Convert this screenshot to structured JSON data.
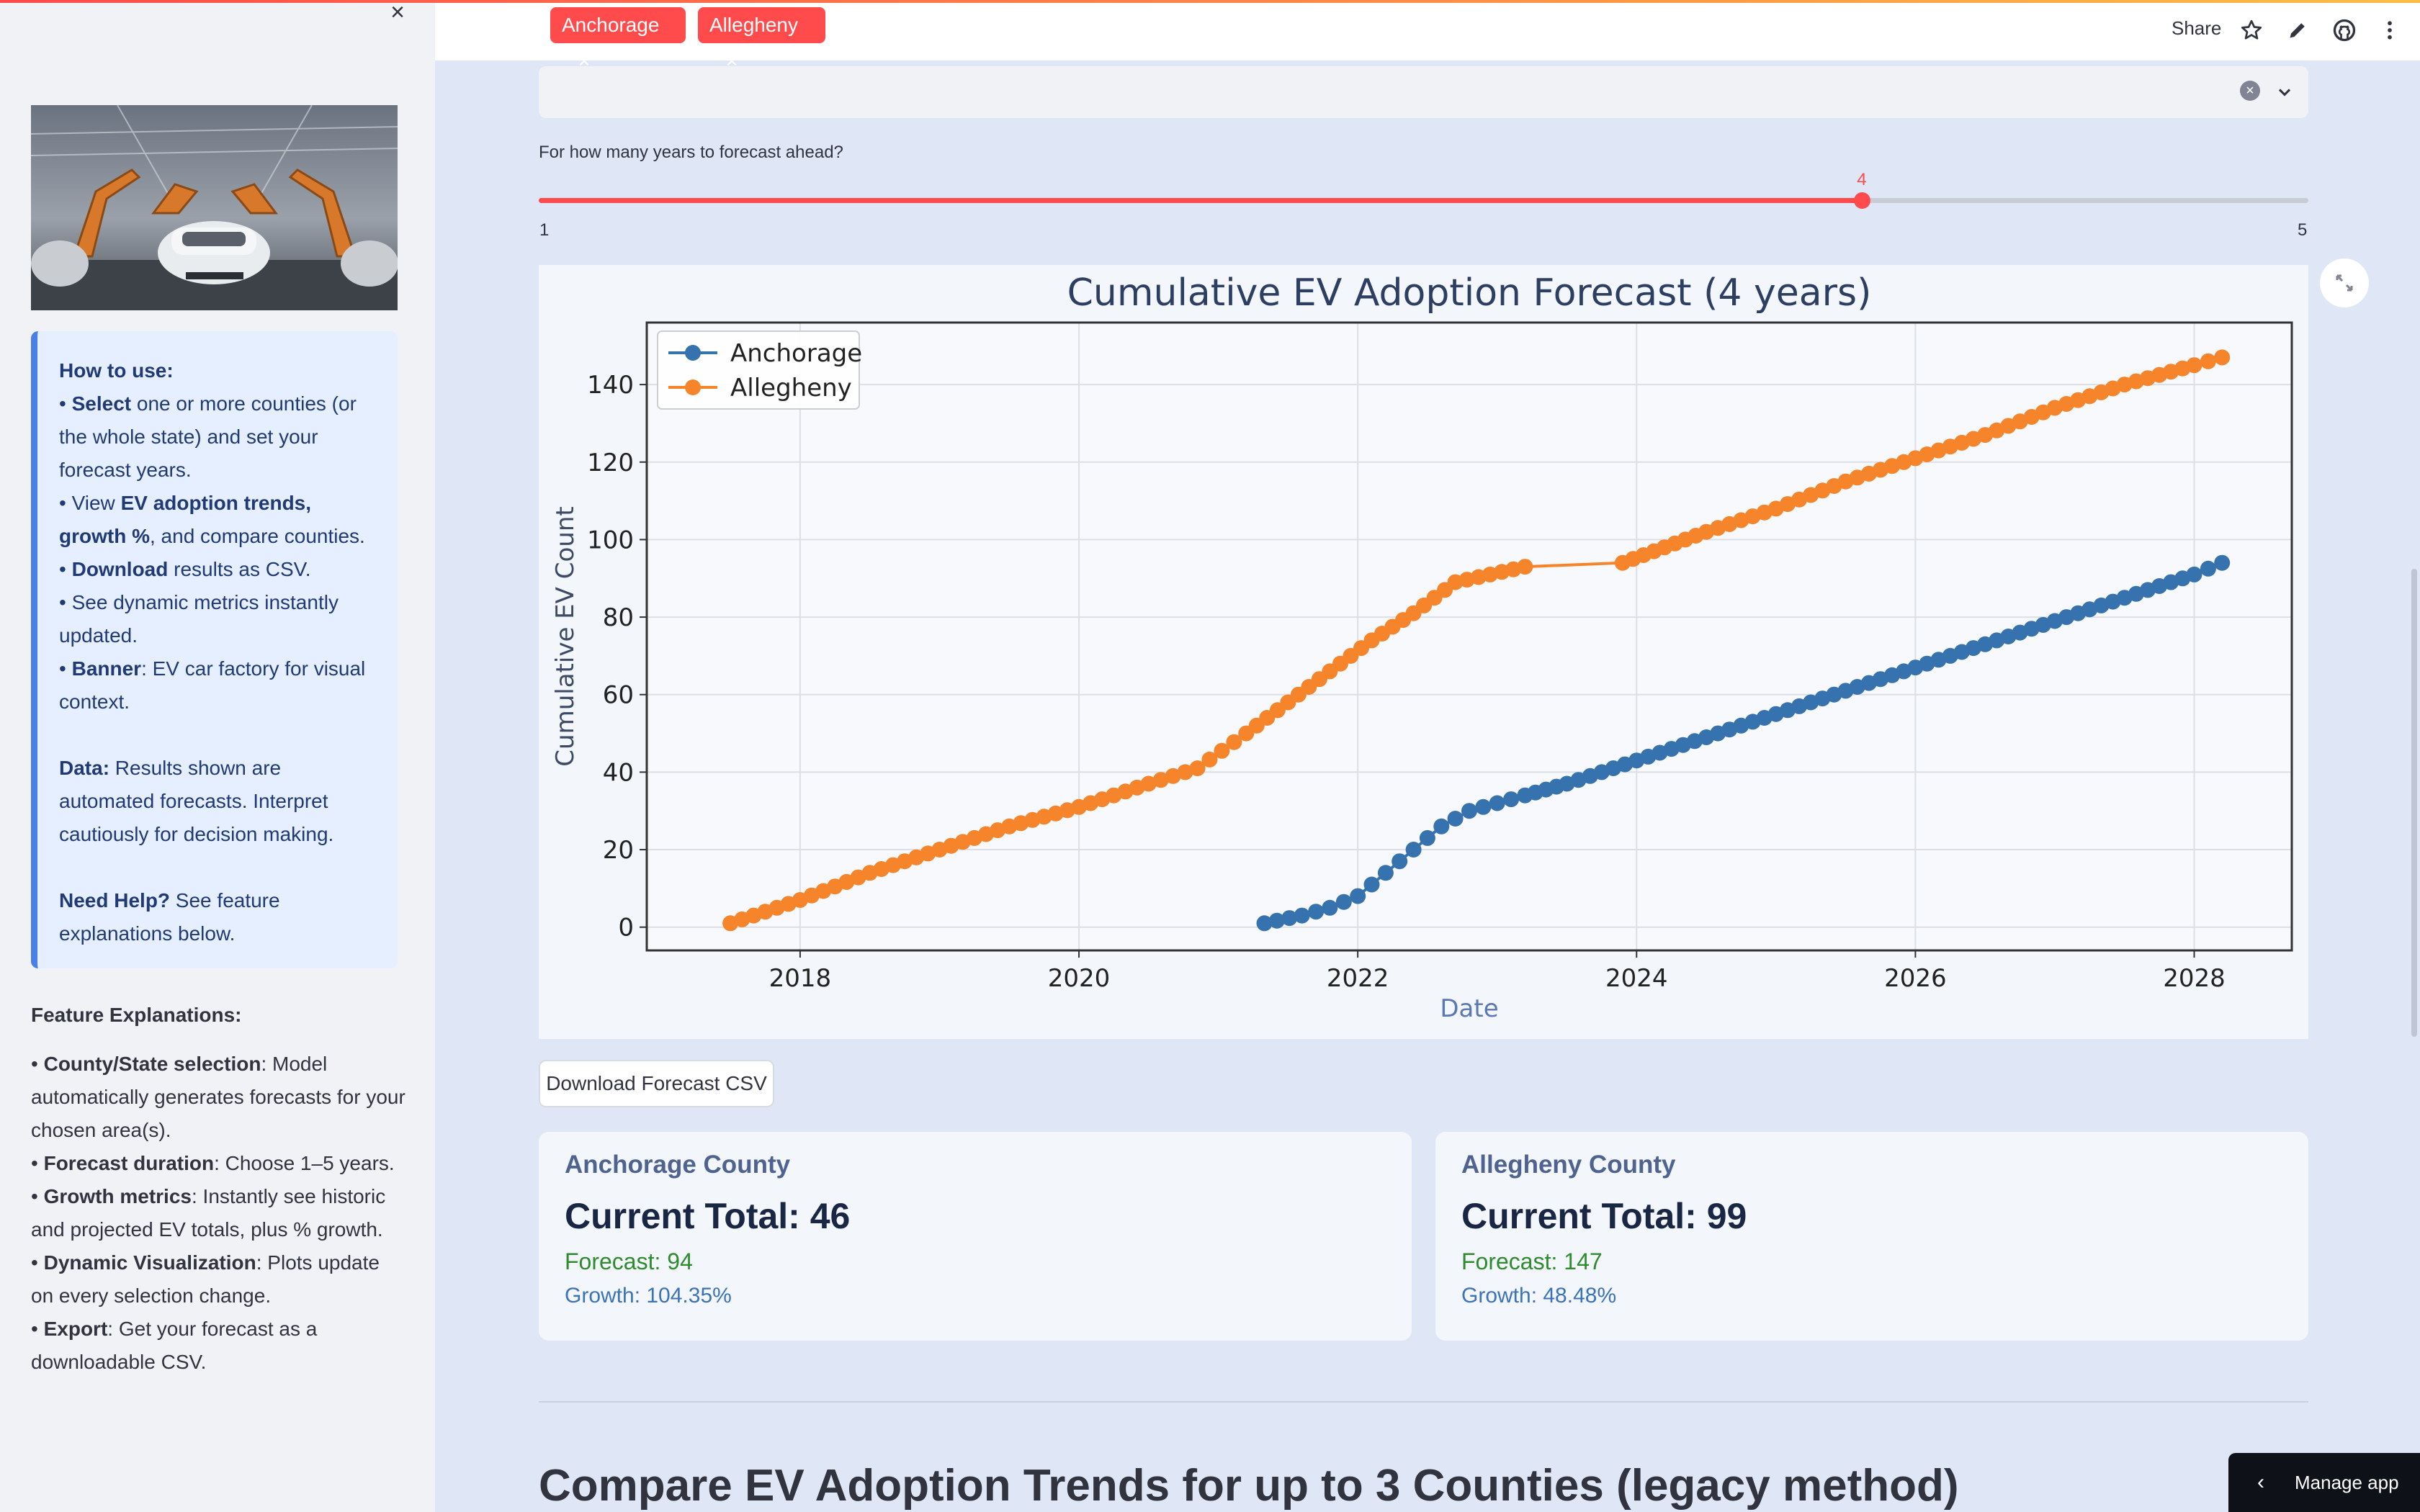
{
  "sidebar": {
    "how_to": {
      "heading": "How to use:",
      "items": [
        {
          "bold": "Select",
          "text": " one or more counties (or the whole state) and set your forecast years."
        },
        {
          "pre": "View ",
          "bold": "EV adoption trends, growth %",
          "text": ", and compare counties."
        },
        {
          "bold": "Download",
          "text": " results as CSV."
        },
        {
          "pre": "See dynamic metrics instantly updated.",
          "bold": "",
          "text": ""
        },
        {
          "bold": "Banner",
          "text": ": EV car factory for visual context."
        }
      ],
      "data_label": "Data:",
      "data_text": " Results shown are automated forecasts. Interpret cautiously for decision making.",
      "help_label": "Need Help?",
      "help_text": " See feature explanations below."
    },
    "features": {
      "heading": "Feature Explanations:",
      "items": [
        {
          "bold": "County/State selection",
          "text": ": Model automatically generates forecasts for your chosen area(s)."
        },
        {
          "bold": "Forecast duration",
          "text": ": Choose 1–5 years."
        },
        {
          "bold": "Growth metrics",
          "text": ": Instantly see historic and projected EV totals, plus % growth."
        },
        {
          "bold": "Dynamic Visualization",
          "text": ": Plots update on every selection change."
        },
        {
          "bold": "Export",
          "text": ": Get your forecast as a downloadable CSV."
        }
      ]
    }
  },
  "header": {
    "share_label": "Share"
  },
  "selector": {
    "tags": [
      "Anchorage",
      "Allegheny"
    ]
  },
  "slider": {
    "label": "For how many years to forecast ahead?",
    "min": "1",
    "max": "5",
    "value": 4
  },
  "chart_data": {
    "type": "line",
    "title": "Cumulative EV Adoption Forecast (4 years)",
    "xlabel": "Date",
    "ylabel": "Cumulative EV Count",
    "xlim": [
      2016.9,
      2028.7
    ],
    "ylim": [
      -6,
      156
    ],
    "xticks": [
      2018,
      2020,
      2022,
      2024,
      2026,
      2028
    ],
    "yticks": [
      0,
      20,
      40,
      60,
      80,
      100,
      120,
      140
    ],
    "grid": true,
    "legend": "top-left",
    "series": [
      {
        "name": "Anchorage",
        "color": "#3672ad",
        "x": [
          2021.33,
          2021.6,
          2021.8,
          2022.0,
          2022.2,
          2022.4,
          2022.6,
          2022.8,
          2023.0,
          2023.2,
          2023.5,
          2024.0,
          2024.5,
          2025.0,
          2025.5,
          2026.0,
          2026.5,
          2027.0,
          2027.5,
          2028.0,
          2028.2
        ],
        "y": [
          1,
          3,
          5,
          8,
          14,
          20,
          26,
          30,
          32,
          34,
          37,
          43,
          49,
          55,
          61,
          67,
          73,
          79,
          85,
          91,
          94
        ]
      },
      {
        "name": "Allegheny",
        "color": "#f5842a",
        "x": [
          2017.5,
          2018.0,
          2018.5,
          2019.0,
          2019.5,
          2020.0,
          2020.5,
          2020.85,
          2021.2,
          2021.5,
          2021.8,
          2022.1,
          2022.4,
          2022.7,
          2022.95,
          2023.2,
          2023.9,
          2024.2,
          2024.5,
          2025.0,
          2025.5,
          2026.0,
          2026.5,
          2027.0,
          2027.5,
          2028.0,
          2028.2
        ],
        "y": [
          1,
          7,
          14,
          20,
          26,
          31,
          37,
          41,
          50,
          58,
          66,
          74,
          81,
          89,
          91,
          93,
          94,
          98,
          102,
          108,
          115,
          121,
          127,
          134,
          140,
          145,
          147
        ]
      }
    ]
  },
  "download_label": "Download Forecast CSV",
  "cards": [
    {
      "name": "Anchorage County",
      "total": "Current Total: 46",
      "forecast": "Forecast: 94",
      "growth": "Growth: 104.35%"
    },
    {
      "name": "Allegheny County",
      "total": "Current Total: 99",
      "forecast": "Forecast: 147",
      "growth": "Growth: 48.48%"
    }
  ],
  "section_title": "Compare EV Adoption Trends for up to 3 Counties (legacy method)",
  "manage_label": "Manage app"
}
